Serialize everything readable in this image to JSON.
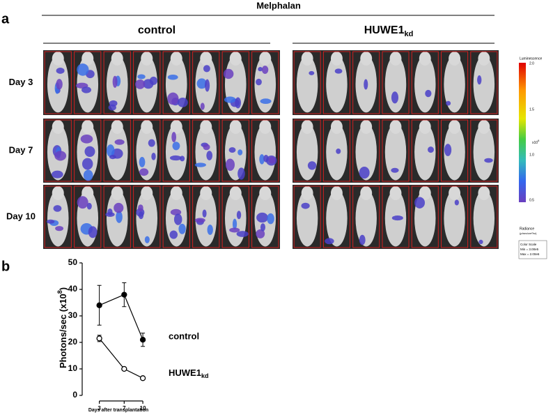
{
  "panel_labels": [
    "a",
    "b"
  ],
  "panel_a": {
    "treatment": "Melphalan",
    "groups": [
      {
        "name": "control"
      },
      {
        "name": "HUWE1",
        "subscript": "kd"
      }
    ],
    "rows": [
      "Day 3",
      "Day 7",
      "Day 10"
    ],
    "overlay_text": "contro",
    "colorbar": {
      "title": "Luminescence",
      "unit": "x10",
      "exponent": "6",
      "ticks": [
        "2.0",
        "1.5",
        "1.0",
        "0.5"
      ],
      "radiance": "Radiance",
      "radiance_unit": "(p/sec/cm²/sr)",
      "scale_box": [
        "Color Scale",
        "Min = 3.00e5",
        "Max = 2.00e6"
      ]
    }
  },
  "chart_data": {
    "type": "line",
    "ylabel": "Photons/sec (x10",
    "ylabel_exponent": "8",
    "ylabel_end": ")",
    "xlabel": "Days after transplantation",
    "x": [
      3,
      7,
      10
    ],
    "xlim": [
      0.8,
      11
    ],
    "xticks": [
      3,
      7,
      10
    ],
    "ylim": [
      0,
      50
    ],
    "yticks": [
      0,
      10,
      20,
      30,
      40,
      50
    ],
    "series": [
      {
        "name": "control",
        "color": "#000000",
        "filled": true,
        "values": [
          34,
          38,
          21
        ],
        "errors": [
          7.5,
          4.5,
          2.5
        ]
      },
      {
        "name": "HUWE1",
        "name_subscript": "kd",
        "color": "#000000",
        "filled": false,
        "values": [
          21.5,
          10,
          6.5
        ],
        "errors": [
          1.2,
          0.4,
          0.6
        ]
      }
    ]
  }
}
